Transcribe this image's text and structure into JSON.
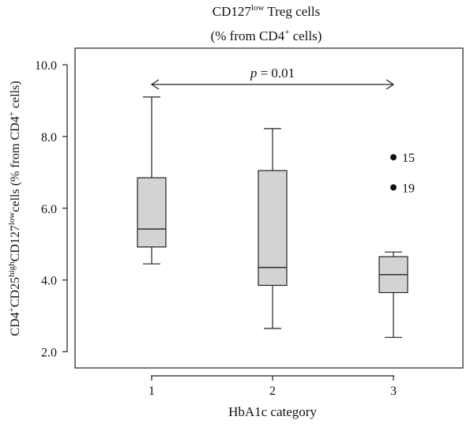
{
  "chart_data": {
    "type": "box",
    "title_main": "CD127",
    "title_sup": "low",
    "title_rest": " Treg cells",
    "subtitle_pre": "(% from CD4",
    "subtitle_sup": "+",
    "subtitle_post": " cells)",
    "ylabel_parts": [
      {
        "text": "CD4",
        "sup": false
      },
      {
        "text": "+",
        "sup": true
      },
      {
        "text": "CD25",
        "sup": false
      },
      {
        "text": "high",
        "sup": true
      },
      {
        "text": "CD127",
        "sup": false
      },
      {
        "text": "low",
        "sup": true
      },
      {
        "text": "cells (% from CD4",
        "sup": false
      },
      {
        "text": "+",
        "sup": true
      },
      {
        "text": " cells)",
        "sup": false
      }
    ],
    "xlabel": "HbA1c category",
    "ylim": [
      1.6,
      10.8
    ],
    "y_ticks": [
      "2.0",
      "4.0",
      "6.0",
      "8.0",
      "10.0"
    ],
    "y_tick_values": [
      2.0,
      4.0,
      6.0,
      8.0,
      10.0
    ],
    "categories": [
      "1",
      "2",
      "3"
    ],
    "boxes": [
      {
        "category": "1",
        "whisker_low": 4.45,
        "q1": 4.92,
        "median": 5.42,
        "q3": 6.85,
        "whisker_high": 9.1,
        "outliers": []
      },
      {
        "category": "2",
        "whisker_low": 2.65,
        "q1": 3.85,
        "median": 4.35,
        "q3": 7.05,
        "whisker_high": 8.22,
        "outliers": []
      },
      {
        "category": "3",
        "whisker_low": 2.4,
        "q1": 3.65,
        "median": 4.15,
        "q3": 4.65,
        "whisker_high": 4.78,
        "outliers": [
          {
            "value": 7.42,
            "label": "15"
          },
          {
            "value": 6.58,
            "label": "19"
          }
        ]
      }
    ],
    "annotation": {
      "p_symbol": "p",
      "p_text": " = 0.01",
      "from_category": "1",
      "to_category": "3",
      "y_value": 10.0
    },
    "box_fill": "#d3d3d3",
    "grid": false
  }
}
